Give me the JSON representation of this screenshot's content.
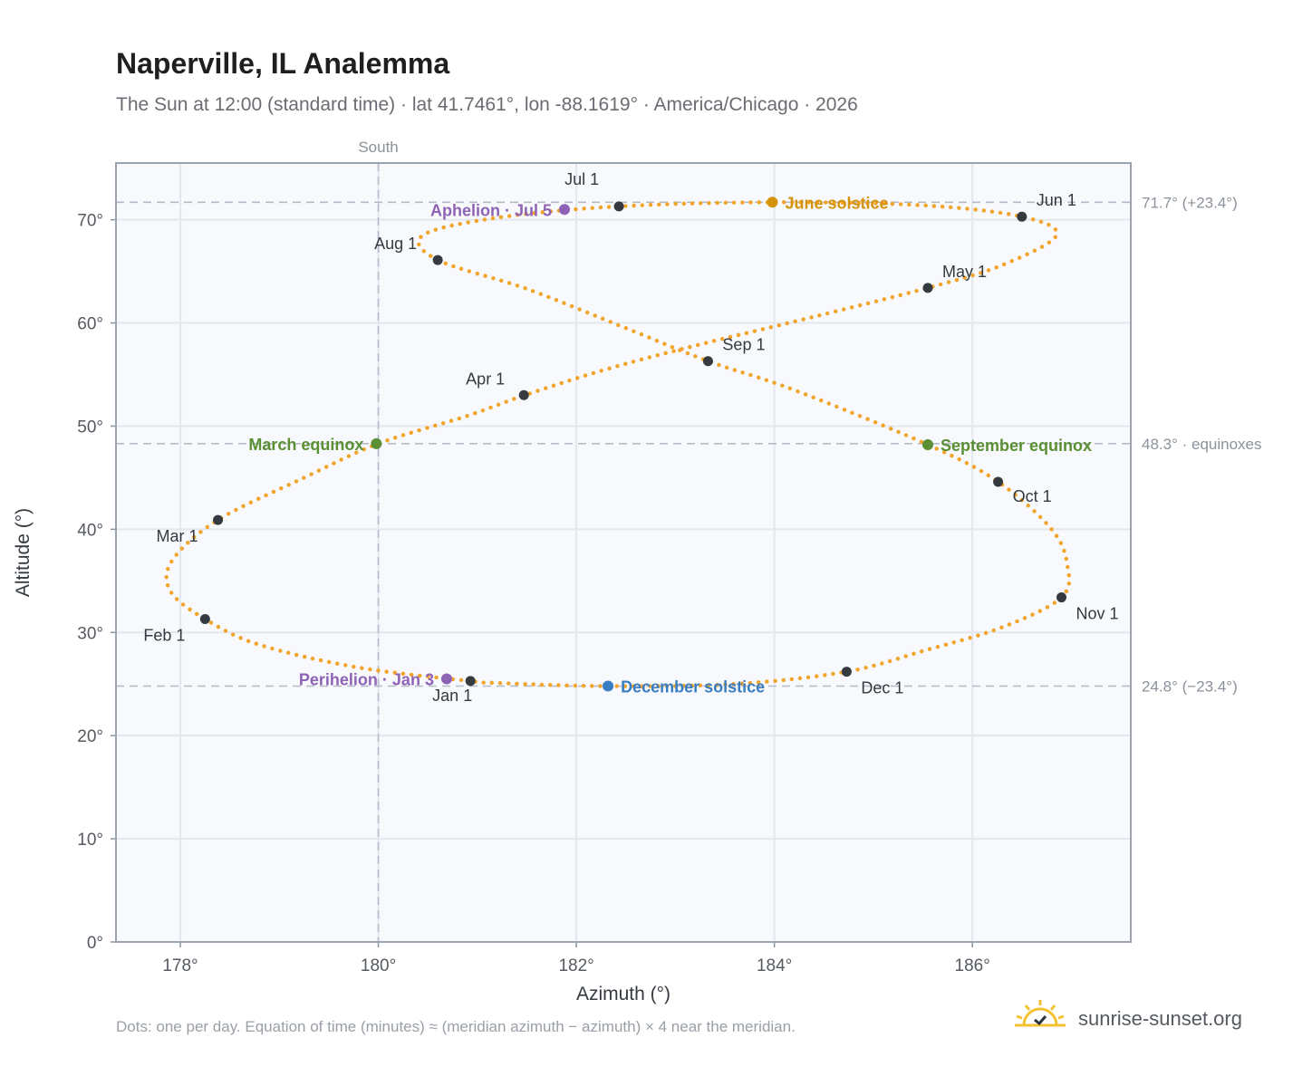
{
  "header": {
    "title": "Naperville, IL Analemma",
    "subtitle": "The Sun at 12:00 (standard time) · lat 41.7461°, lon -88.1619° · America/Chicago · 2026"
  },
  "footer": {
    "note": "Dots: one per day. Equation of time (minutes) ≈ (meridian azimuth − azimuth) × 4 near the meridian.",
    "brand": "sunrise-sunset.org"
  },
  "colors": {
    "path": "#f2a52d",
    "month_marker": "#343a40",
    "june_solstice": "#d4930c",
    "december_solstice": "#3a7dc0",
    "equinox": "#5a8f34",
    "apsis": "#8e63b5",
    "reference_line": "#b4bcc8",
    "plot_bg": "#f7f9fc"
  },
  "chart_data": {
    "type": "scatter",
    "xlabel": "Azimuth (°)",
    "ylabel": "Altitude (°)",
    "xlim": [
      177.35,
      187.6
    ],
    "ylim": [
      0,
      75.5
    ],
    "xticks": [
      178,
      180,
      182,
      184,
      186
    ],
    "xtick_labels": [
      "178°",
      "180°",
      "182°",
      "184°",
      "186°"
    ],
    "yticks": [
      0,
      10,
      20,
      30,
      40,
      50,
      60,
      70
    ],
    "ytick_labels": [
      "0°",
      "10°",
      "20°",
      "30°",
      "40°",
      "50°",
      "60°",
      "70°"
    ],
    "grid": true,
    "meridian": {
      "x": 180,
      "label": "South"
    },
    "reference_lines": [
      {
        "y": 71.7,
        "label": "71.7° (+23.4°)"
      },
      {
        "y": 48.3,
        "label": "48.3° · equinoxes"
      },
      {
        "y": 24.8,
        "label": "24.8° (−23.4°)"
      }
    ],
    "path_points": [
      [
        180.92,
        25.3
      ],
      [
        179.8,
        26.6
      ],
      [
        178.8,
        28.8
      ],
      [
        178.25,
        31.3
      ],
      [
        177.9,
        34.0
      ],
      [
        177.92,
        37.0
      ],
      [
        178.38,
        40.9
      ],
      [
        179.25,
        45.0
      ],
      [
        180.0,
        48.3
      ],
      [
        180.9,
        51.0
      ],
      [
        181.48,
        53.0
      ],
      [
        182.3,
        55.5
      ],
      [
        183.2,
        57.8
      ],
      [
        184.4,
        60.6
      ],
      [
        185.55,
        63.4
      ],
      [
        186.3,
        65.6
      ],
      [
        186.85,
        68.5
      ],
      [
        186.5,
        70.3
      ],
      [
        185.5,
        71.4
      ],
      [
        184.0,
        71.7
      ],
      [
        182.43,
        71.3
      ],
      [
        181.2,
        70.2
      ],
      [
        180.45,
        68.5
      ],
      [
        180.6,
        66.1
      ],
      [
        181.5,
        63.3
      ],
      [
        182.5,
        59.5
      ],
      [
        183.33,
        56.3
      ],
      [
        184.2,
        53.5
      ],
      [
        185.55,
        48.2
      ],
      [
        186.26,
        44.6
      ],
      [
        186.8,
        40.0
      ],
      [
        186.96,
        36.5
      ],
      [
        186.9,
        33.4
      ],
      [
        186.3,
        30.5
      ],
      [
        185.5,
        28.2
      ],
      [
        184.73,
        26.2
      ],
      [
        183.6,
        25.0
      ],
      [
        182.3,
        24.8
      ],
      [
        181.2,
        25.1
      ],
      [
        180.92,
        25.3
      ]
    ],
    "month_markers": [
      {
        "label": "Jan 1",
        "x": 180.93,
        "y": 25.3
      },
      {
        "label": "Feb 1",
        "x": 178.25,
        "y": 31.3
      },
      {
        "label": "Mar 1",
        "x": 178.38,
        "y": 40.9
      },
      {
        "label": "Apr 1",
        "x": 181.47,
        "y": 53.0
      },
      {
        "label": "May 1",
        "x": 185.55,
        "y": 63.4
      },
      {
        "label": "Jun 1",
        "x": 186.5,
        "y": 70.3
      },
      {
        "label": "Jul 1",
        "x": 182.43,
        "y": 71.3
      },
      {
        "label": "Aug 1",
        "x": 180.6,
        "y": 66.1
      },
      {
        "label": "Sep 1",
        "x": 183.33,
        "y": 56.3
      },
      {
        "label": "Oct 1",
        "x": 186.26,
        "y": 44.6
      },
      {
        "label": "Nov 1",
        "x": 186.9,
        "y": 33.4
      },
      {
        "label": "Dec 1",
        "x": 184.73,
        "y": 26.2
      }
    ],
    "events": [
      {
        "label": "June solstice",
        "x": 183.98,
        "y": 71.7,
        "kind": "june_solstice"
      },
      {
        "label": "December solstice",
        "x": 182.32,
        "y": 24.8,
        "kind": "december_solstice"
      },
      {
        "label": "March equinox",
        "x": 179.98,
        "y": 48.3,
        "kind": "equinox"
      },
      {
        "label": "September equinox",
        "x": 185.55,
        "y": 48.2,
        "kind": "equinox"
      },
      {
        "label": "Aphelion · Jul 5",
        "x": 181.88,
        "y": 71.0,
        "kind": "apsis"
      },
      {
        "label": "Perihelion · Jan 3",
        "x": 180.69,
        "y": 25.5,
        "kind": "apsis"
      }
    ]
  }
}
